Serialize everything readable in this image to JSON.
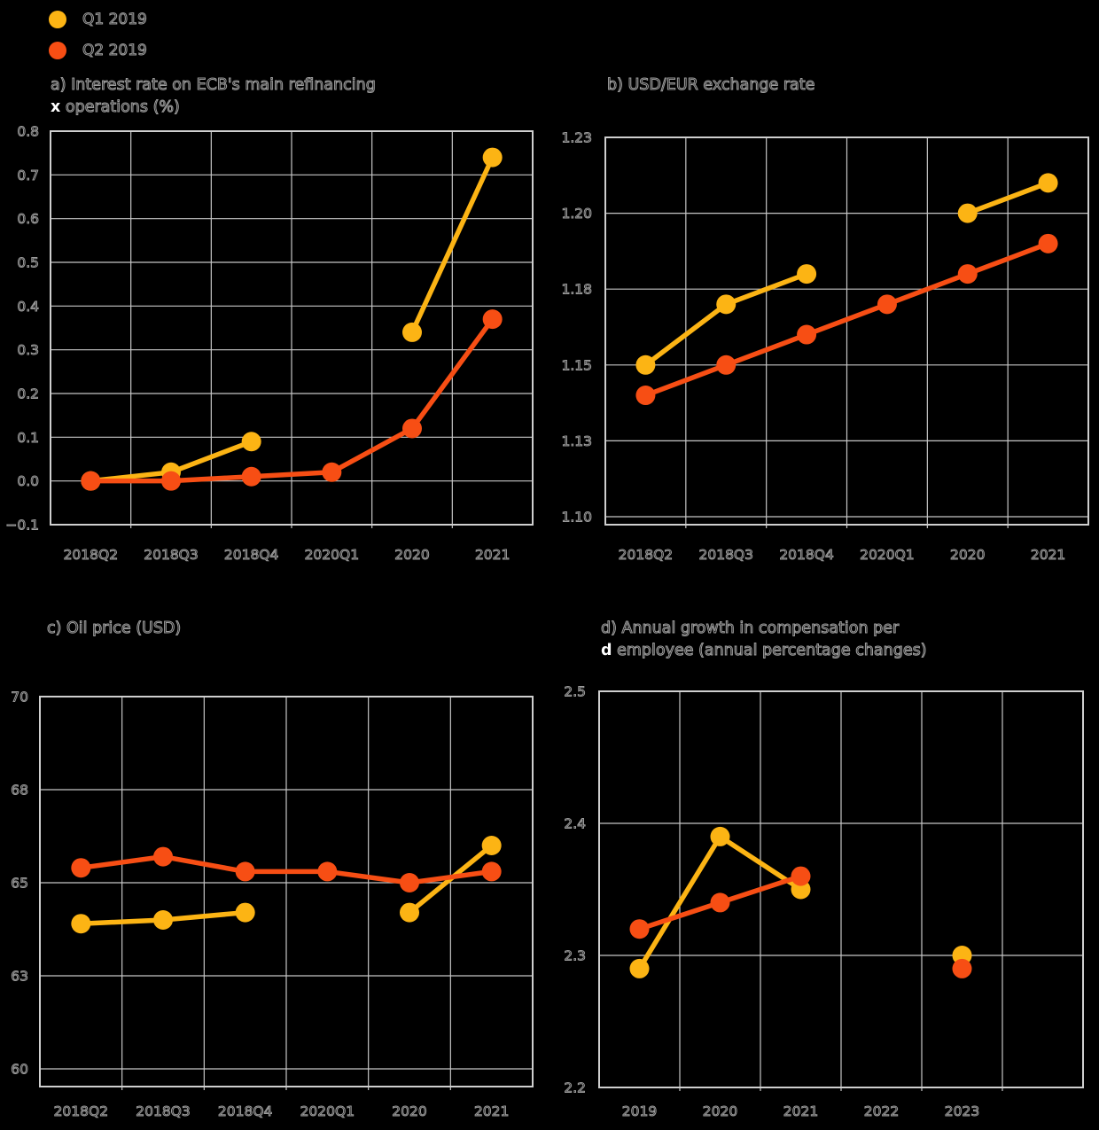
{
  "style": {
    "background": "#000000",
    "grid_color": "#c6c6c6",
    "border_color": "#cfcfcf",
    "text_outline_color": "#9c9c9c",
    "series_q1_color": "#fcb414",
    "series_q2_color": "#f74e14"
  },
  "legend": {
    "items": [
      {
        "label": "Q1 2019",
        "color": "#fcb414",
        "marker": "circle-icon"
      },
      {
        "label": "Q2 2019",
        "color": "#f74e14",
        "marker": "circle-icon"
      }
    ]
  },
  "chart_data": [
    {
      "id": "a",
      "type": "line",
      "title_line1": "a) Interest rate on ECB's main refinancing",
      "white_prefix": "x",
      "title_line2": "operations (%)",
      "categories": [
        "2018Q2",
        "2018Q3",
        "2018Q4",
        "2020Q1",
        "2020",
        "2021"
      ],
      "y_tick_labels": [
        "0.8",
        "0.7",
        "0.6",
        "0.5",
        "0.4",
        "0.3",
        "0.2",
        "0.1",
        "0.0",
        "−0.1"
      ],
      "y_tick_values": [
        0.8,
        0.7,
        0.6,
        0.5,
        0.4,
        0.3,
        0.2,
        0.1,
        0.0,
        -0.1
      ],
      "ylim": [
        -0.1,
        0.8
      ],
      "grid": true,
      "series": [
        {
          "name": "Q1 2019",
          "color": "#fcb414",
          "values": [
            0.0,
            0.02,
            0.09,
            null,
            0.34,
            0.74
          ]
        },
        {
          "name": "Q2 2019",
          "color": "#f74e14",
          "values": [
            0.0,
            0.0,
            0.01,
            0.02,
            0.12,
            0.37
          ]
        }
      ]
    },
    {
      "id": "b",
      "type": "line",
      "title_line1": "b) USD/EUR exchange rate",
      "white_prefix": null,
      "title_line2": null,
      "categories": [
        "2018Q2",
        "2018Q3",
        "2018Q4",
        "2020Q1",
        "2020",
        "2021"
      ],
      "y_tick_labels": [
        "1.23",
        "1.20",
        "1.18",
        "1.15",
        "1.13",
        "1.10"
      ],
      "y_tick_values": [
        1.225,
        1.2,
        1.175,
        1.15,
        1.125,
        1.1
      ],
      "ylim": [
        1.08,
        1.225
      ],
      "grid": true,
      "series": [
        {
          "name": "Q1 2019",
          "color": "#fcb414",
          "values": [
            1.15,
            1.17,
            1.18,
            null,
            1.2,
            1.21
          ]
        },
        {
          "name": "Q2 2019",
          "color": "#f74e14",
          "values": [
            1.14,
            1.15,
            1.16,
            1.17,
            1.18,
            1.19
          ]
        }
      ]
    },
    {
      "id": "c",
      "type": "line",
      "title_line1": "c) Oil price (USD)",
      "white_prefix": null,
      "title_line2": null,
      "categories": [
        "2018Q2",
        "2018Q3",
        "2018Q4",
        "2020Q1",
        "2020",
        "2021"
      ],
      "y_tick_labels": [
        "70",
        "68",
        "65",
        "63",
        "60"
      ],
      "y_tick_values": [
        70,
        67.5,
        65,
        62.5,
        60
      ],
      "ylim": [
        59.5,
        70
      ],
      "grid": true,
      "series": [
        {
          "name": "Q1 2019",
          "color": "#fcb414",
          "values": [
            63.9,
            64.0,
            64.2,
            null,
            64.2,
            66.0
          ]
        },
        {
          "name": "Q2 2019",
          "color": "#f74e14",
          "values": [
            65.4,
            65.7,
            65.3,
            65.3,
            65.0,
            65.3
          ]
        }
      ]
    },
    {
      "id": "d",
      "type": "line",
      "title_line1": "d) Annual growth in compensation per",
      "white_prefix": "d",
      "title_line2": "employee (annual percentage changes)",
      "categories": [
        "2019",
        "2020",
        "2021",
        "2022",
        "2023"
      ],
      "y_tick_labels": [
        "2.5",
        "2.4",
        "2.3",
        "2.2"
      ],
      "y_tick_values": [
        2.5,
        2.4,
        2.3,
        2.2
      ],
      "ylim": [
        2.2,
        2.5
      ],
      "grid": true,
      "series": [
        {
          "name": "Q1 2019",
          "color": "#fcb414",
          "values": [
            2.29,
            2.39,
            2.35,
            null,
            2.3
          ]
        },
        {
          "name": "Q2 2019",
          "color": "#f74e14",
          "values": [
            2.32,
            2.34,
            2.36,
            null,
            2.29
          ]
        }
      ]
    }
  ]
}
